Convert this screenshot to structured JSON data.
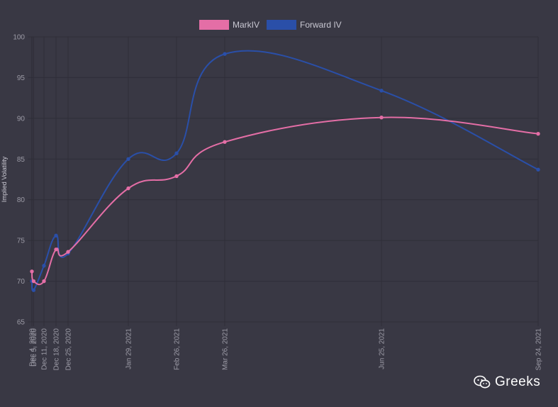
{
  "chart_data": {
    "type": "line",
    "title": "",
    "xlabel": "",
    "ylabel": "Implied Volatility",
    "ylim": [
      65,
      100
    ],
    "yticks": [
      65,
      70,
      75,
      80,
      85,
      90,
      95,
      100
    ],
    "xticks": [
      "Dec 4, 2020",
      "Dec 5, 2020",
      "Dec 11, 2020",
      "Dec 18, 2020",
      "Dec 25, 2020",
      "Jan 29, 2021",
      "Feb 26, 2021",
      "Mar 26, 2021",
      "Jun 25, 2021",
      "Sep 24, 2021"
    ],
    "x": [
      "2020-12-04",
      "2020-12-05",
      "2020-12-11",
      "2020-12-18",
      "2020-12-25",
      "2021-01-29",
      "2021-02-26",
      "2021-03-26",
      "2021-06-25",
      "2021-09-24"
    ],
    "grid": true,
    "legend_position": "top",
    "series": [
      {
        "name": "MarkIV",
        "color": "#e46ea6",
        "values": [
          71.2,
          70.0,
          70.0,
          73.9,
          73.6,
          81.4,
          82.9,
          87.1,
          90.1,
          88.1
        ]
      },
      {
        "name": "Forward IV",
        "color": "#2a4fa8",
        "values": [
          70.0,
          68.9,
          71.9,
          75.6,
          73.4,
          85.0,
          85.7,
          97.9,
          93.4,
          83.7
        ]
      }
    ]
  },
  "watermark": {
    "text": "Greeks",
    "icon": "wechat-icon"
  }
}
